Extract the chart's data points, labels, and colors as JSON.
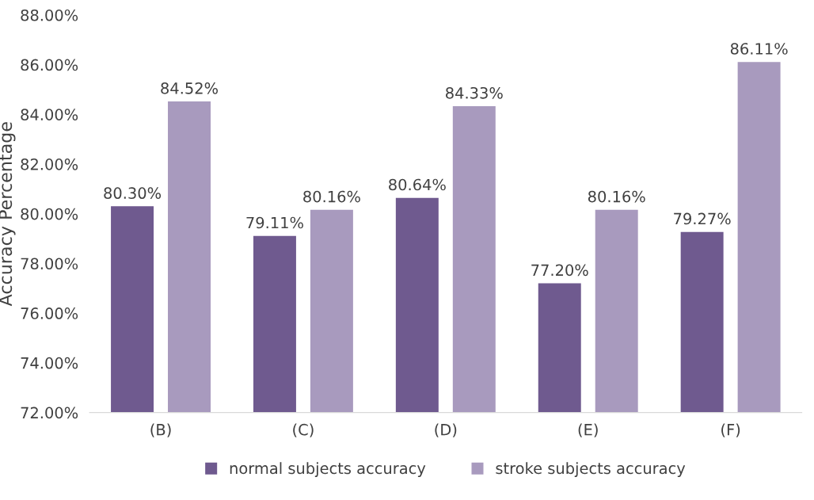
{
  "chart_data": {
    "type": "bar",
    "ylabel": "Accuracy Percentage",
    "categories": [
      "(B)",
      "(C)",
      "(D)",
      "(E)",
      "(F)"
    ],
    "series": [
      {
        "name": "normal subjects accuracy",
        "color": "#6f5a8f",
        "values": [
          80.3,
          79.11,
          80.64,
          77.2,
          79.27
        ],
        "value_labels": [
          "80.30%",
          "79.11%",
          "80.64%",
          "77.20%",
          "79.27%"
        ]
      },
      {
        "name": "stroke subjects accuracy",
        "color": "#a89abe",
        "values": [
          84.52,
          80.16,
          84.33,
          80.16,
          86.11
        ],
        "value_labels": [
          "84.52%",
          "80.16%",
          "84.33%",
          "80.16%",
          "86.11%"
        ]
      }
    ],
    "ylim": [
      72,
      88
    ],
    "yticks": [
      {
        "value": 72,
        "label": "72.00%"
      },
      {
        "value": 74,
        "label": "74.00%"
      },
      {
        "value": 76,
        "label": "76.00%"
      },
      {
        "value": 78,
        "label": "78.00%"
      },
      {
        "value": 80,
        "label": "80.00%"
      },
      {
        "value": 82,
        "label": "82.00%"
      },
      {
        "value": 84,
        "label": "84.00%"
      },
      {
        "value": 86,
        "label": "86.00%"
      },
      {
        "value": 88,
        "label": "88.00%"
      }
    ],
    "grid": false,
    "legend": "bottom"
  }
}
